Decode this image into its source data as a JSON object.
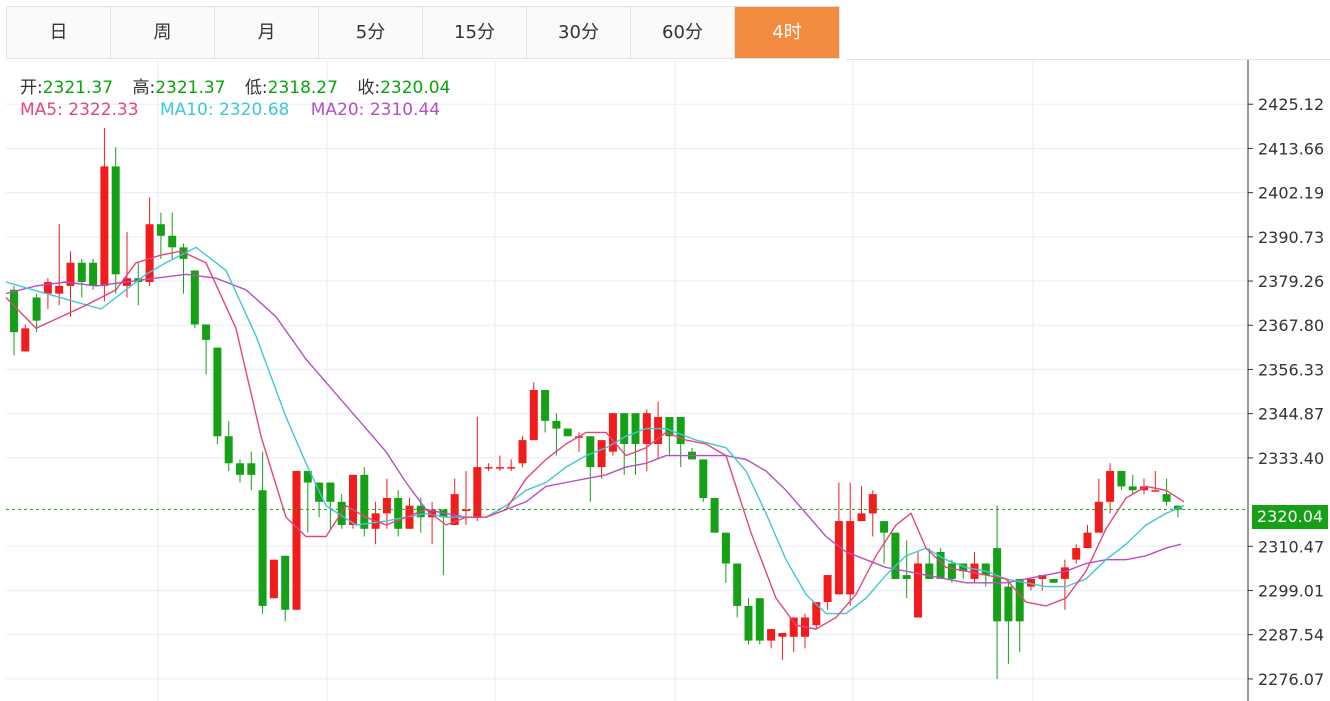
{
  "tabs": [
    {
      "label": "日",
      "active": false
    },
    {
      "label": "周",
      "active": false
    },
    {
      "label": "月",
      "active": false
    },
    {
      "label": "5分",
      "active": false
    },
    {
      "label": "15分",
      "active": false
    },
    {
      "label": "30分",
      "active": false
    },
    {
      "label": "60分",
      "active": false
    },
    {
      "label": "4时",
      "active": true
    }
  ],
  "ohlc": {
    "open_label": "开:",
    "open": "2321.37",
    "high_label": "高:",
    "high": "2321.37",
    "low_label": "低:",
    "low": "2318.27",
    "close_label": "收:",
    "close": "2320.04"
  },
  "ma": {
    "ma5_label": "MA5:",
    "ma5": "2322.33",
    "ma10_label": "MA10:",
    "ma10": "2320.68",
    "ma20_label": "MA20:",
    "ma20": "2310.44"
  },
  "current_price": "2320.04",
  "colors": {
    "up": "#f21c1c",
    "down": "#16a016",
    "ma5": "#e6457a",
    "ma10": "#3ec8d6",
    "ma20": "#b44fc7",
    "active_tab": "#f28b3f"
  },
  "chart_data": {
    "type": "candlestick",
    "ylim": [
      2270.34,
      2436.59
    ],
    "y_ticks": [
      "2425.12",
      "2413.66",
      "2402.19",
      "2390.73",
      "2379.26",
      "2367.80",
      "2356.33",
      "2344.87",
      "2333.40",
      "2310.47",
      "2299.01",
      "2287.54",
      "2276.07"
    ],
    "last_price": 2320.04,
    "candles": [
      [
        2377,
        2366,
        2378,
        2360
      ],
      [
        2361,
        2367,
        2368,
        2361
      ],
      [
        2375,
        2369,
        2376,
        2366
      ],
      [
        2376,
        2379,
        2380,
        2372
      ],
      [
        2376,
        2378,
        2394,
        2373
      ],
      [
        2378,
        2384,
        2387,
        2370
      ],
      [
        2384,
        2379,
        2385,
        2375
      ],
      [
        2384,
        2378,
        2385,
        2377
      ],
      [
        2378,
        2409,
        2419,
        2374
      ],
      [
        2409,
        2381,
        2414,
        2376
      ],
      [
        2378,
        2380,
        2392,
        2375
      ],
      [
        2380,
        2379,
        2384,
        2373
      ],
      [
        2379,
        2394,
        2401,
        2378
      ],
      [
        2394,
        2391,
        2397,
        2385
      ],
      [
        2391,
        2388,
        2397,
        2385
      ],
      [
        2388,
        2385,
        2389,
        2376
      ],
      [
        2382,
        2368,
        2382,
        2367
      ],
      [
        2368,
        2364,
        2367,
        2355
      ],
      [
        2362,
        2339,
        2362,
        2337
      ],
      [
        2339,
        2332,
        2343,
        2330
      ],
      [
        2332,
        2329,
        2333,
        2327
      ],
      [
        2332,
        2329,
        2335,
        2325
      ],
      [
        2325,
        2295,
        2335,
        2293
      ],
      [
        2297,
        2307,
        2307,
        2297
      ],
      [
        2308,
        2294,
        2308,
        2291
      ],
      [
        2294,
        2330,
        2330,
        2294
      ],
      [
        2330,
        2327,
        2330,
        2314
      ],
      [
        2327,
        2322,
        2327,
        2318
      ],
      [
        2327,
        2322,
        2327,
        2315
      ],
      [
        2322,
        2316,
        2324,
        2315
      ],
      [
        2316,
        2329,
        2329,
        2315
      ],
      [
        2329,
        2315,
        2331,
        2313
      ],
      [
        2315,
        2319,
        2322,
        2311
      ],
      [
        2319,
        2323,
        2328,
        2315
      ],
      [
        2323,
        2315,
        2325,
        2313
      ],
      [
        2315,
        2321,
        2323,
        2315
      ],
      [
        2321,
        2318,
        2323,
        2314
      ],
      [
        2318,
        2320,
        2322,
        2311
      ],
      [
        2320,
        2318,
        2319,
        2303
      ],
      [
        2316,
        2324,
        2328,
        2317
      ],
      [
        2320,
        2320,
        2330,
        2316
      ],
      [
        2318,
        2331,
        2344,
        2317
      ],
      [
        2331,
        2331,
        2332,
        2330
      ],
      [
        2331,
        2331,
        2334,
        2330
      ],
      [
        2331,
        2331,
        2333,
        2330
      ],
      [
        2332,
        2338,
        2339,
        2331
      ],
      [
        2338,
        2351,
        2353,
        2338
      ],
      [
        2351,
        2343,
        2351,
        2340
      ],
      [
        2343,
        2341,
        2345,
        2334
      ],
      [
        2341,
        2339,
        2341,
        2339
      ],
      [
        2339,
        2339,
        2340,
        2335
      ],
      [
        2339,
        2331,
        2339,
        2322
      ],
      [
        2331,
        2338,
        2338,
        2328
      ],
      [
        2335,
        2345,
        2345,
        2334
      ],
      [
        2345,
        2337,
        2345,
        2329
      ],
      [
        2345,
        2337,
        2345,
        2329
      ],
      [
        2337,
        2345,
        2346,
        2330
      ],
      [
        2337,
        2344,
        2348,
        2333
      ],
      [
        2344,
        2339,
        2344,
        2334
      ],
      [
        2344,
        2337,
        2344,
        2331
      ],
      [
        2335,
        2333,
        2336,
        2333
      ],
      [
        2333,
        2323,
        2333,
        2322
      ],
      [
        2323,
        2314,
        2323,
        2314
      ],
      [
        2314,
        2306,
        2314,
        2301
      ],
      [
        2306,
        2295,
        2306,
        2292
      ],
      [
        2295,
        2286,
        2297,
        2285
      ],
      [
        2297,
        2286,
        2297,
        2285
      ],
      [
        2286,
        2289,
        2289,
        2284
      ],
      [
        2287,
        2288,
        2288,
        2281
      ],
      [
        2287,
        2292,
        2292,
        2283
      ],
      [
        2287,
        2292,
        2293,
        2284
      ],
      [
        2290,
        2296,
        2296,
        2289
      ],
      [
        2296,
        2303,
        2303,
        2294
      ],
      [
        2298,
        2317,
        2327,
        2298
      ],
      [
        2298,
        2317,
        2327,
        2295
      ],
      [
        2317,
        2319,
        2326,
        2318
      ],
      [
        2319,
        2324,
        2325,
        2313
      ],
      [
        2317,
        2314,
        2317,
        2306
      ],
      [
        2314,
        2302,
        2314,
        2302
      ],
      [
        2303,
        2302,
        2312,
        2297
      ],
      [
        2292,
        2306,
        2309,
        2292
      ],
      [
        2306,
        2302,
        2310,
        2302
      ],
      [
        2309,
        2302,
        2310,
        2302
      ],
      [
        2306,
        2302,
        2307,
        2301
      ],
      [
        2306,
        2304,
        2306,
        2302
      ],
      [
        2302,
        2306,
        2309,
        2301
      ],
      [
        2306,
        2303,
        2306,
        2300
      ],
      [
        2310,
        2291,
        2321,
        2276
      ],
      [
        2300,
        2291,
        2302,
        2280
      ],
      [
        2302,
        2291,
        2302,
        2283
      ],
      [
        2300,
        2302,
        2302,
        2299
      ],
      [
        2302,
        2303,
        2302,
        2299
      ],
      [
        2302,
        2301,
        2302,
        2301
      ],
      [
        2302,
        2305,
        2307,
        2294
      ],
      [
        2307,
        2310,
        2311,
        2306
      ],
      [
        2310,
        2314,
        2316,
        2310
      ],
      [
        2314,
        2322,
        2328,
        2315
      ],
      [
        2322,
        2330,
        2332,
        2319
      ],
      [
        2330,
        2326,
        2330,
        2325
      ],
      [
        2326,
        2325,
        2329,
        2324
      ],
      [
        2325,
        2326,
        2328,
        2324
      ],
      [
        2325,
        2325,
        2330,
        2325
      ],
      [
        2324,
        2322,
        2328,
        2321
      ],
      [
        2321,
        2320,
        2321,
        2318
      ]
    ],
    "ma5": [
      [
        0,
        2375
      ],
      [
        30,
        2367
      ],
      [
        80,
        2373
      ],
      [
        110,
        2377
      ],
      [
        130,
        2384
      ],
      [
        155,
        2386
      ],
      [
        175,
        2387
      ],
      [
        200,
        2384
      ],
      [
        230,
        2367
      ],
      [
        255,
        2339
      ],
      [
        280,
        2318
      ],
      [
        300,
        2313
      ],
      [
        320,
        2313
      ],
      [
        340,
        2321
      ],
      [
        360,
        2318
      ],
      [
        380,
        2316
      ],
      [
        400,
        2318
      ],
      [
        420,
        2320
      ],
      [
        440,
        2316
      ],
      [
        460,
        2318
      ],
      [
        480,
        2318
      ],
      [
        500,
        2320
      ],
      [
        520,
        2328
      ],
      [
        540,
        2333
      ],
      [
        560,
        2337
      ],
      [
        580,
        2340
      ],
      [
        600,
        2340
      ],
      [
        620,
        2334
      ],
      [
        640,
        2336
      ],
      [
        660,
        2340
      ],
      [
        680,
        2338
      ],
      [
        700,
        2337
      ],
      [
        720,
        2334
      ],
      [
        745,
        2314
      ],
      [
        770,
        2297
      ],
      [
        790,
        2290
      ],
      [
        810,
        2289
      ],
      [
        830,
        2292
      ],
      [
        850,
        2298
      ],
      [
        870,
        2308
      ],
      [
        890,
        2316
      ],
      [
        905,
        2319
      ],
      [
        920,
        2310
      ],
      [
        940,
        2305
      ],
      [
        960,
        2304
      ],
      [
        980,
        2303
      ],
      [
        1000,
        2302
      ],
      [
        1020,
        2296
      ],
      [
        1040,
        2295
      ],
      [
        1060,
        2297
      ],
      [
        1080,
        2304
      ],
      [
        1100,
        2315
      ],
      [
        1120,
        2323
      ],
      [
        1140,
        2326
      ],
      [
        1160,
        2325
      ],
      [
        1178,
        2322
      ]
    ],
    "ma10": [
      [
        0,
        2379
      ],
      [
        40,
        2376
      ],
      [
        95,
        2372
      ],
      [
        120,
        2377
      ],
      [
        140,
        2381
      ],
      [
        160,
        2384
      ],
      [
        190,
        2388
      ],
      [
        220,
        2382
      ],
      [
        250,
        2365
      ],
      [
        280,
        2344
      ],
      [
        300,
        2332
      ],
      [
        320,
        2321
      ],
      [
        350,
        2316
      ],
      [
        380,
        2317
      ],
      [
        400,
        2318
      ],
      [
        420,
        2319
      ],
      [
        440,
        2318
      ],
      [
        480,
        2318
      ],
      [
        500,
        2321
      ],
      [
        520,
        2325
      ],
      [
        540,
        2327
      ],
      [
        560,
        2331
      ],
      [
        580,
        2334
      ],
      [
        600,
        2336
      ],
      [
        620,
        2339
      ],
      [
        640,
        2341
      ],
      [
        660,
        2341
      ],
      [
        690,
        2338
      ],
      [
        720,
        2336
      ],
      [
        740,
        2330
      ],
      [
        760,
        2319
      ],
      [
        780,
        2307
      ],
      [
        800,
        2298
      ],
      [
        820,
        2293
      ],
      [
        840,
        2293
      ],
      [
        860,
        2297
      ],
      [
        880,
        2303
      ],
      [
        900,
        2308
      ],
      [
        920,
        2310
      ],
      [
        940,
        2307
      ],
      [
        960,
        2305
      ],
      [
        980,
        2304
      ],
      [
        1000,
        2302
      ],
      [
        1020,
        2301
      ],
      [
        1040,
        2300
      ],
      [
        1060,
        2300
      ],
      [
        1080,
        2302
      ],
      [
        1100,
        2307
      ],
      [
        1120,
        2311
      ],
      [
        1140,
        2316
      ],
      [
        1160,
        2319
      ],
      [
        1178,
        2321
      ]
    ],
    "ma20": [
      [
        0,
        2376
      ],
      [
        30,
        2378
      ],
      [
        60,
        2379
      ],
      [
        90,
        2378
      ],
      [
        120,
        2379
      ],
      [
        150,
        2380
      ],
      [
        180,
        2381
      ],
      [
        210,
        2380
      ],
      [
        240,
        2377
      ],
      [
        270,
        2370
      ],
      [
        300,
        2359
      ],
      [
        330,
        2350
      ],
      [
        360,
        2341
      ],
      [
        380,
        2335
      ],
      [
        400,
        2327
      ],
      [
        420,
        2320
      ],
      [
        440,
        2319
      ],
      [
        460,
        2318
      ],
      [
        480,
        2318
      ],
      [
        500,
        2320
      ],
      [
        520,
        2322
      ],
      [
        540,
        2326
      ],
      [
        560,
        2327
      ],
      [
        580,
        2328
      ],
      [
        600,
        2329
      ],
      [
        620,
        2331
      ],
      [
        640,
        2332
      ],
      [
        660,
        2334
      ],
      [
        690,
        2334
      ],
      [
        720,
        2334
      ],
      [
        740,
        2333
      ],
      [
        760,
        2330
      ],
      [
        780,
        2325
      ],
      [
        800,
        2319
      ],
      [
        820,
        2313
      ],
      [
        840,
        2309
      ],
      [
        860,
        2307
      ],
      [
        880,
        2305
      ],
      [
        900,
        2304
      ],
      [
        920,
        2303
      ],
      [
        940,
        2302
      ],
      [
        960,
        2301
      ],
      [
        980,
        2301
      ],
      [
        1000,
        2301
      ],
      [
        1020,
        2302
      ],
      [
        1040,
        2303
      ],
      [
        1060,
        2304
      ],
      [
        1080,
        2306
      ],
      [
        1100,
        2307
      ],
      [
        1120,
        2307
      ],
      [
        1140,
        2308
      ],
      [
        1160,
        2310
      ],
      [
        1175,
        2311
      ]
    ]
  }
}
